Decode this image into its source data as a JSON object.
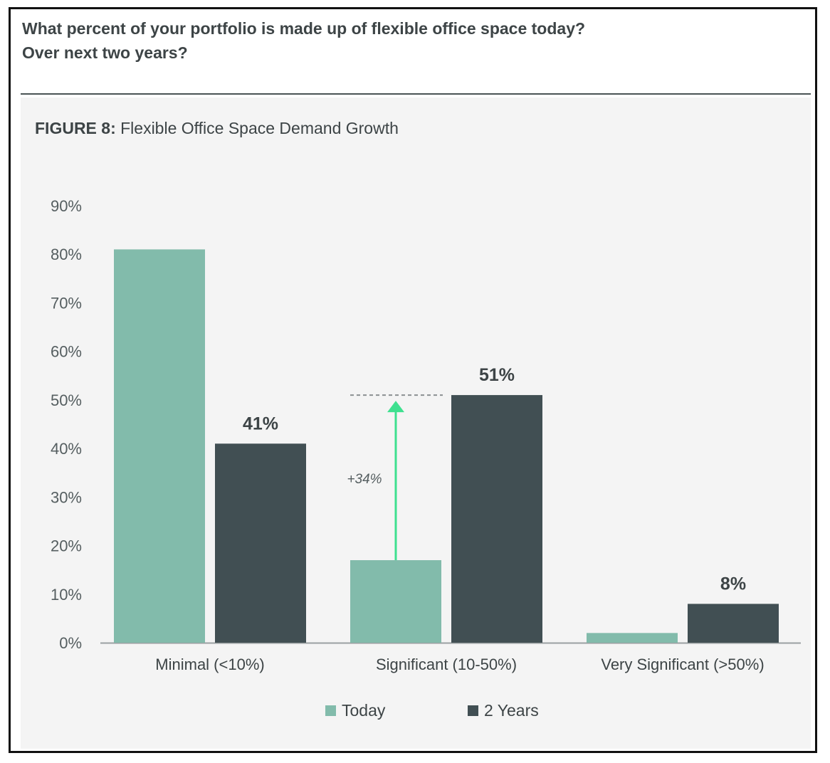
{
  "question": {
    "line1": "What percent of your portfolio is made up of flexible office space today?",
    "line2": "Over next two years?"
  },
  "figure": {
    "label": "FIGURE 8:",
    "title": "Flexible Office Space Demand Growth"
  },
  "colors": {
    "today": "#82bbab",
    "two_years": "#414f53",
    "arrow": "#3ee08f"
  },
  "chart_data": {
    "type": "bar",
    "title": "Flexible Office Space Demand Growth",
    "categories": [
      "Minimal (<10%)",
      "Significant (10-50%)",
      "Very Significant (>50%)"
    ],
    "series": [
      {
        "name": "Today",
        "values": [
          81,
          17,
          2
        ],
        "labels": [
          "",
          "",
          ""
        ]
      },
      {
        "name": "2 Years",
        "values": [
          41,
          51,
          8
        ],
        "labels": [
          "41%",
          "51%",
          "8%"
        ]
      }
    ],
    "yticks": [
      "0%",
      "10%",
      "20%",
      "30%",
      "40%",
      "50%",
      "60%",
      "70%",
      "80%",
      "90%"
    ],
    "ylim": [
      0,
      90
    ],
    "annotation": {
      "text": "+34%",
      "category": "Significant (10-50%)",
      "from": 17,
      "to": 51
    },
    "legend_position": "bottom",
    "grid": false
  }
}
